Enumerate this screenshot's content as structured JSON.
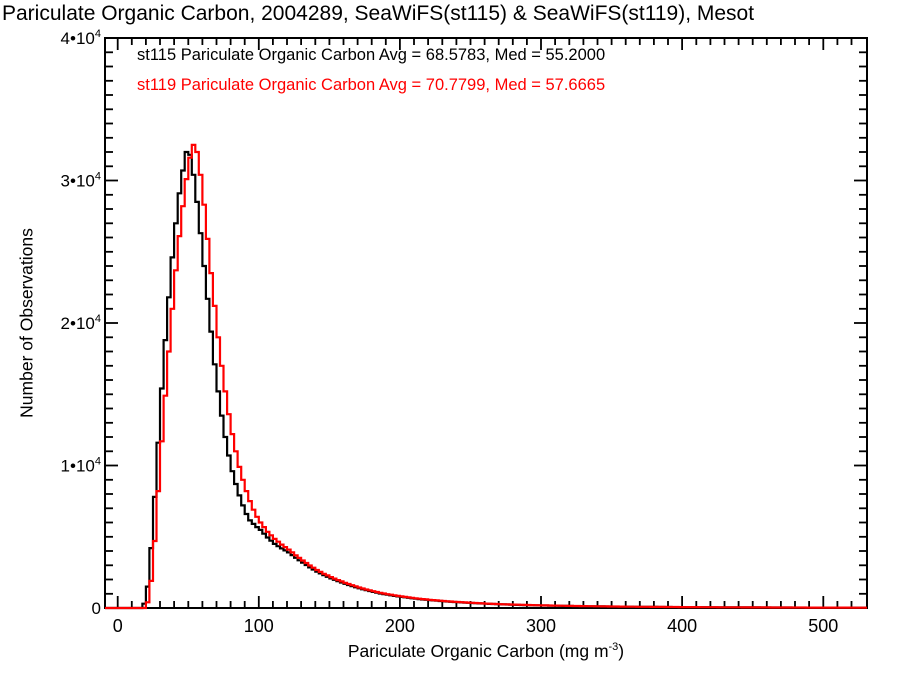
{
  "title": "Pariculate Organic Carbon, 2004289, SeaWiFS(st115) & SeaWiFS(st119), Mesot",
  "legend": [
    {
      "name": "st115",
      "label": "st115 Pariculate Organic Carbon Avg = 68.5783, Med = 55.2000",
      "color": "#000000"
    },
    {
      "name": "st119",
      "label": "st119 Pariculate Organic Carbon Avg = 70.7799, Med = 57.6665",
      "color": "#ff0000"
    }
  ],
  "chart_data": {
    "type": "line",
    "subtype": "step-histogram",
    "title": "Pariculate Organic Carbon, 2004289, SeaWiFS(st115) & SeaWiFS(st119), Mesot",
    "xlabel_pre": "Pariculate Organic Carbon (mg m",
    "xlabel_sup": "-3",
    "xlabel_post": ")",
    "ylabel": "Number of Observations",
    "xlim": [
      -9,
      531
    ],
    "ylim": [
      0,
      40000
    ],
    "grid": false,
    "legend_position": "top-left-inside",
    "axis_color": "#000000",
    "background": "#ffffff",
    "bin_width": 2.5,
    "x_major_ticks": [
      {
        "v": 0,
        "label": "0"
      },
      {
        "v": 100,
        "label": "100"
      },
      {
        "v": 200,
        "label": "200"
      },
      {
        "v": 300,
        "label": "300"
      },
      {
        "v": 400,
        "label": "400"
      },
      {
        "v": 500,
        "label": "500"
      }
    ],
    "x_minor_step": 10,
    "y_major_ticks": [
      {
        "v": 0,
        "base": "0",
        "exp": ""
      },
      {
        "v": 10000,
        "base": "1•10",
        "exp": "4"
      },
      {
        "v": 20000,
        "base": "2•10",
        "exp": "4"
      },
      {
        "v": 30000,
        "base": "3•10",
        "exp": "4"
      },
      {
        "v": 40000,
        "base": "4•10",
        "exp": "4"
      }
    ],
    "y_minor_step": 1000,
    "series": [
      {
        "name": "st115",
        "sensor": "SeaWiFS",
        "color": "#000000",
        "avg": 68.5783,
        "med": 55.2,
        "points": [
          [
            0,
            0
          ],
          [
            15,
            0
          ],
          [
            17.5,
            300
          ],
          [
            20,
            1500
          ],
          [
            22.5,
            4200
          ],
          [
            25,
            7800
          ],
          [
            27.5,
            11600
          ],
          [
            30,
            15400
          ],
          [
            32.5,
            18800
          ],
          [
            35,
            21800
          ],
          [
            37.5,
            24600
          ],
          [
            40,
            27000
          ],
          [
            42.5,
            29100
          ],
          [
            45,
            30700
          ],
          [
            47.5,
            32000
          ],
          [
            50,
            31800
          ],
          [
            52.5,
            30400
          ],
          [
            55,
            28500
          ],
          [
            57.5,
            26300
          ],
          [
            60,
            24000
          ],
          [
            62.5,
            21700
          ],
          [
            65,
            19400
          ],
          [
            67.5,
            17100
          ],
          [
            70,
            15200
          ],
          [
            72.5,
            13500
          ],
          [
            75,
            12000
          ],
          [
            77.5,
            10700
          ],
          [
            80,
            9600
          ],
          [
            82.5,
            8700
          ],
          [
            85,
            7900
          ],
          [
            87.5,
            7200
          ],
          [
            90,
            6600
          ],
          [
            92.5,
            6150
          ],
          [
            95,
            5900
          ],
          [
            97.5,
            5680
          ],
          [
            100,
            5480
          ],
          [
            105,
            4950
          ],
          [
            110,
            4500
          ],
          [
            115,
            4180
          ],
          [
            120,
            3900
          ],
          [
            125,
            3520
          ],
          [
            130,
            3180
          ],
          [
            135,
            2850
          ],
          [
            140,
            2550
          ],
          [
            145,
            2300
          ],
          [
            150,
            2080
          ],
          [
            155,
            1880
          ],
          [
            160,
            1700
          ],
          [
            165,
            1530
          ],
          [
            170,
            1380
          ],
          [
            175,
            1250
          ],
          [
            180,
            1130
          ],
          [
            185,
            1020
          ],
          [
            190,
            930
          ],
          [
            195,
            850
          ],
          [
            200,
            780
          ],
          [
            210,
            650
          ],
          [
            220,
            550
          ],
          [
            230,
            470
          ],
          [
            240,
            405
          ],
          [
            250,
            350
          ],
          [
            260,
            300
          ],
          [
            270,
            260
          ],
          [
            280,
            228
          ],
          [
            290,
            200
          ],
          [
            300,
            178
          ],
          [
            320,
            140
          ],
          [
            340,
            112
          ],
          [
            360,
            90
          ],
          [
            380,
            74
          ],
          [
            400,
            62
          ],
          [
            425,
            50
          ],
          [
            450,
            40
          ],
          [
            475,
            32
          ],
          [
            500,
            26
          ],
          [
            531,
            20
          ]
        ]
      },
      {
        "name": "st119",
        "sensor": "SeaWiFS",
        "color": "#ff0000",
        "avg": 70.7799,
        "med": 57.6665,
        "points": [
          [
            0,
            0
          ],
          [
            17.5,
            0
          ],
          [
            20,
            400
          ],
          [
            22.5,
            1900
          ],
          [
            25,
            4700
          ],
          [
            27.5,
            8200
          ],
          [
            30,
            11700
          ],
          [
            32.5,
            14900
          ],
          [
            35,
            18000
          ],
          [
            37.5,
            21000
          ],
          [
            40,
            23700
          ],
          [
            42.5,
            26100
          ],
          [
            45,
            28200
          ],
          [
            47.5,
            30100
          ],
          [
            50,
            31600
          ],
          [
            52.5,
            32500
          ],
          [
            55,
            32000
          ],
          [
            57.5,
            30400
          ],
          [
            60,
            28300
          ],
          [
            62.5,
            25900
          ],
          [
            65,
            23500
          ],
          [
            67.5,
            21200
          ],
          [
            70,
            19000
          ],
          [
            72.5,
            17000
          ],
          [
            75,
            15200
          ],
          [
            77.5,
            13600
          ],
          [
            80,
            12200
          ],
          [
            82.5,
            11000
          ],
          [
            85,
            9900
          ],
          [
            87.5,
            9000
          ],
          [
            90,
            8200
          ],
          [
            92.5,
            7500
          ],
          [
            95,
            6900
          ],
          [
            97.5,
            6400
          ],
          [
            100,
            6000
          ],
          [
            105,
            5350
          ],
          [
            110,
            4850
          ],
          [
            115,
            4450
          ],
          [
            120,
            4100
          ],
          [
            125,
            3700
          ],
          [
            130,
            3330
          ],
          [
            135,
            2980
          ],
          [
            140,
            2670
          ],
          [
            145,
            2400
          ],
          [
            150,
            2170
          ],
          [
            155,
            1960
          ],
          [
            160,
            1770
          ],
          [
            165,
            1600
          ],
          [
            170,
            1440
          ],
          [
            175,
            1300
          ],
          [
            180,
            1180
          ],
          [
            185,
            1070
          ],
          [
            190,
            970
          ],
          [
            195,
            890
          ],
          [
            200,
            815
          ],
          [
            210,
            680
          ],
          [
            220,
            575
          ],
          [
            230,
            490
          ],
          [
            240,
            420
          ],
          [
            250,
            363
          ],
          [
            260,
            312
          ],
          [
            270,
            270
          ],
          [
            280,
            237
          ],
          [
            290,
            208
          ],
          [
            300,
            185
          ],
          [
            320,
            146
          ],
          [
            340,
            117
          ],
          [
            360,
            94
          ],
          [
            380,
            77
          ],
          [
            400,
            65
          ],
          [
            425,
            52
          ],
          [
            450,
            42
          ],
          [
            475,
            34
          ],
          [
            500,
            28
          ],
          [
            531,
            22
          ]
        ]
      }
    ]
  }
}
